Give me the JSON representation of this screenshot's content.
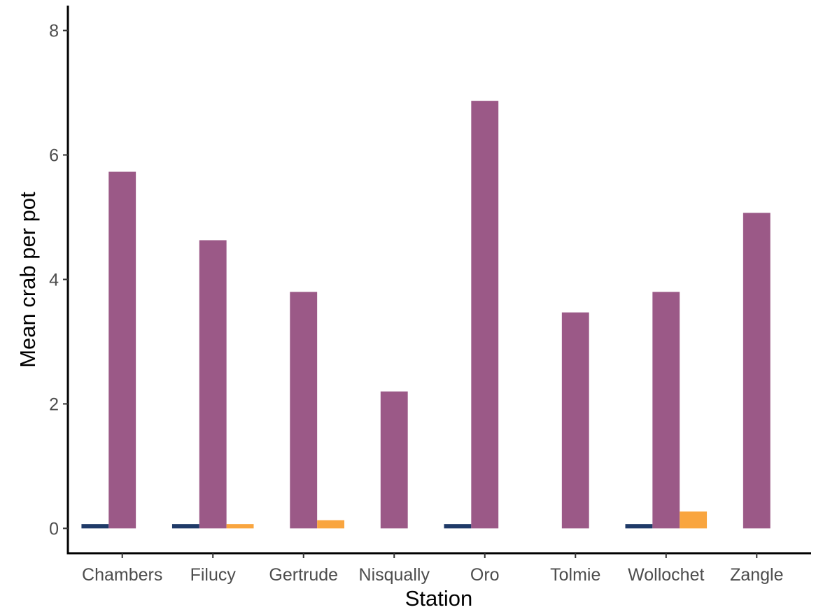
{
  "chart_data": {
    "type": "bar",
    "title": "",
    "xlabel": "Station",
    "ylabel": "Mean crab per pot",
    "ylim": [
      -0.4,
      8.4
    ],
    "yticks": [
      0,
      2,
      4,
      6,
      8
    ],
    "categories": [
      "Chambers",
      "Filucy",
      "Gertrude",
      "Nisqually",
      "Oro",
      "Tolmie",
      "Wollochet",
      "Zangle"
    ],
    "series": [
      {
        "color": "#1f3a68",
        "values": [
          0.07,
          0.07,
          0,
          0,
          0.07,
          0,
          0.07,
          0
        ]
      },
      {
        "color": "#9b5987",
        "values": [
          5.73,
          4.63,
          3.8,
          2.2,
          6.87,
          3.47,
          3.8,
          5.07
        ]
      },
      {
        "color": "#f9a53f",
        "values": [
          0,
          0.07,
          0.13,
          0,
          0,
          0,
          0.27,
          0
        ]
      }
    ],
    "grid": false,
    "legend": "none"
  }
}
